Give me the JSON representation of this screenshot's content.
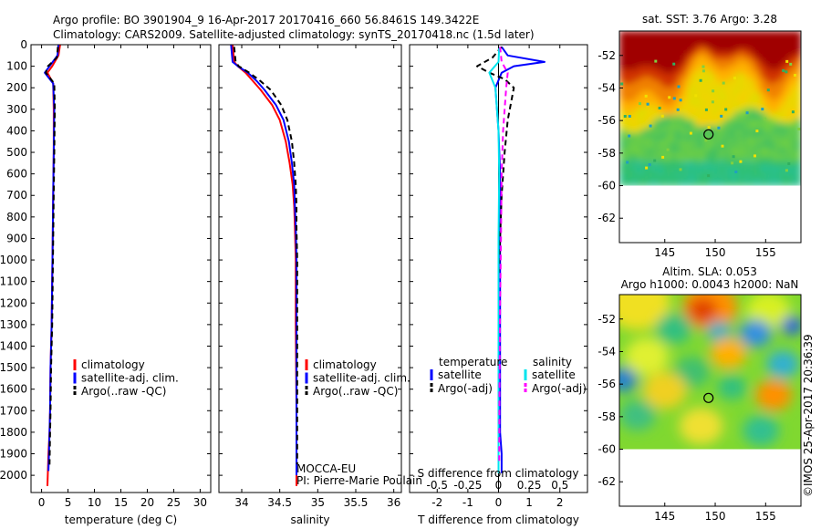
{
  "header": {
    "line1": "Argo profile: BO 3901904_9 16-Apr-2017 20170416_660 56.8461S 149.3422E",
    "line2": "Climatology: CARS2009. Satellite-adjusted climatology: synTS_20170418.nc (1.5d later)"
  },
  "colors": {
    "climatology": "#ff0000",
    "satellite": "#0000ff",
    "argo": "#000000",
    "sal_satellite": "#00e5ee",
    "sal_argo": "#ff00ff"
  },
  "chart_data": [
    {
      "type": "line",
      "id": "temperature",
      "xlabel": "temperature (deg C)",
      "xlim": [
        -2,
        32
      ],
      "ylim": [
        2080,
        0
      ],
      "xticks": [
        0,
        5,
        10,
        15,
        20,
        25,
        30
      ],
      "yticks": [
        0,
        100,
        200,
        300,
        400,
        500,
        600,
        700,
        800,
        900,
        1000,
        1100,
        1200,
        1300,
        1400,
        1500,
        1600,
        1700,
        1800,
        1900,
        2000
      ],
      "legend_position": "lower-center",
      "series": [
        {
          "name": "climatology",
          "color": "#ff0000",
          "style": "solid",
          "width": 2,
          "x": [
            3.5,
            3.2,
            2.0,
            1.1,
            2.2,
            2.3,
            2.3,
            2.2,
            2.1,
            2.0,
            1.9,
            1.7,
            1.6,
            1.5,
            1.3,
            1.1
          ],
          "y": [
            0,
            50,
            100,
            130,
            180,
            300,
            500,
            700,
            900,
            1100,
            1300,
            1500,
            1700,
            1800,
            1900,
            2050
          ]
        },
        {
          "name": "satellite-adj. clim.",
          "color": "#0000ff",
          "style": "solid",
          "width": 2,
          "x": [
            3.2,
            3.0,
            1.5,
            0.6,
            2.2,
            2.4,
            2.3,
            2.2,
            2.1,
            2.0,
            1.9,
            1.7,
            1.6,
            1.5,
            1.4,
            1.3
          ],
          "y": [
            0,
            50,
            100,
            130,
            180,
            300,
            500,
            700,
            900,
            1100,
            1300,
            1500,
            1700,
            1800,
            1900,
            1980
          ]
        },
        {
          "name": "Argo(..raw -QC)",
          "color": "#000000",
          "style": "dashed",
          "width": 2,
          "x": [
            3.1,
            2.9,
            1.2,
            0.8,
            2.4,
            2.5,
            2.4,
            2.3,
            2.2,
            2.1,
            2.0,
            1.8,
            1.7,
            1.6,
            1.5
          ],
          "y": [
            10,
            60,
            100,
            130,
            180,
            300,
            500,
            700,
            900,
            1100,
            1300,
            1500,
            1700,
            1800,
            1950
          ]
        }
      ]
    },
    {
      "type": "line",
      "id": "salinity",
      "xlabel": "salinity",
      "xlim": [
        33.7,
        36.1
      ],
      "ylim": [
        2080,
        0
      ],
      "xticks": [
        34,
        34.5,
        35,
        35.5,
        36
      ],
      "legend_position": "lower-center",
      "annotations": [
        "MOCCA-EU",
        "PI: Pierre-Marie Poulain"
      ],
      "series": [
        {
          "name": "climatology",
          "color": "#ff0000",
          "style": "solid",
          "width": 2,
          "x": [
            33.88,
            33.9,
            33.95,
            34.05,
            34.15,
            34.25,
            34.4,
            34.5,
            34.58,
            34.63,
            34.67,
            34.69,
            34.7,
            34.71,
            34.71,
            34.72,
            34.72
          ],
          "y": [
            0,
            80,
            100,
            130,
            170,
            210,
            280,
            350,
            450,
            550,
            650,
            750,
            850,
            1000,
            1300,
            1700,
            2050
          ]
        },
        {
          "name": "satellite-adj. clim.",
          "color": "#0000ff",
          "style": "solid",
          "width": 2,
          "x": [
            33.86,
            33.88,
            33.95,
            34.08,
            34.2,
            34.3,
            34.45,
            34.55,
            34.62,
            34.66,
            34.69,
            34.7,
            34.71,
            34.72,
            34.72,
            34.72,
            34.72
          ],
          "y": [
            0,
            80,
            100,
            130,
            170,
            210,
            280,
            350,
            450,
            550,
            650,
            750,
            850,
            1000,
            1300,
            1700,
            2000
          ]
        },
        {
          "name": "Argo(..raw -QC)",
          "color": "#000000",
          "style": "dashed",
          "width": 2,
          "x": [
            33.9,
            33.92,
            33.96,
            34.1,
            34.25,
            34.38,
            34.52,
            34.6,
            34.66,
            34.69,
            34.71,
            34.72,
            34.72,
            34.73,
            34.73,
            34.73
          ],
          "y": [
            10,
            80,
            100,
            130,
            170,
            210,
            280,
            350,
            450,
            550,
            650,
            750,
            850,
            1000,
            1300,
            1950
          ]
        }
      ]
    },
    {
      "type": "line",
      "id": "difference",
      "xlabel": "T difference from climatology",
      "xlabel2": "S difference from climatology",
      "xlim": [
        -2.9,
        2.9
      ],
      "ylim": [
        2080,
        0
      ],
      "xticks": [
        -2,
        -1,
        0,
        1,
        2
      ],
      "xticks_s": [
        "-0.5",
        "-0.25",
        "0",
        "0.25",
        "0.5"
      ],
      "legend_position": "lower-center",
      "legend_titles": [
        "temperature",
        "salinity"
      ],
      "series": [
        {
          "name": "satellite",
          "group": "temperature",
          "color": "#0000ff",
          "style": "solid",
          "width": 2,
          "x": [
            0.1,
            0.3,
            1.5,
            0.5,
            0.1,
            -0.1,
            0.0,
            0.05,
            0.05,
            0.05,
            0.05,
            0.05,
            0.05,
            0.05,
            0.1,
            0.1
          ],
          "y": [
            10,
            50,
            80,
            100,
            130,
            200,
            400,
            600,
            800,
            1000,
            1200,
            1400,
            1600,
            1800,
            1900,
            1990
          ]
        },
        {
          "name": "Argo(-adj)",
          "group": "temperature",
          "color": "#000000",
          "style": "dashed",
          "width": 2,
          "x": [
            0.1,
            -0.2,
            -0.7,
            -0.3,
            0.2,
            0.5,
            0.3,
            0.2,
            0.1,
            0.05,
            0.0,
            0.0,
            0.0,
            0.0,
            0.0
          ],
          "y": [
            10,
            60,
            100,
            130,
            160,
            200,
            350,
            500,
            700,
            900,
            1100,
            1400,
            1600,
            1800,
            1950
          ]
        },
        {
          "name": "satellite",
          "group": "salinity",
          "color": "#00e5ee",
          "style": "solid",
          "width": 2,
          "x": [
            0.02,
            0.0,
            -0.3,
            -0.1,
            -0.05,
            0.0,
            0.02,
            0.0,
            0.0,
            0.0,
            0.0
          ],
          "y": [
            10,
            80,
            130,
            200,
            300,
            400,
            600,
            900,
            1200,
            1600,
            1990
          ]
        },
        {
          "name": "Argo(-adj)",
          "group": "salinity",
          "color": "#ff00ff",
          "style": "dashed",
          "width": 2,
          "x": [
            0.05,
            0.1,
            0.3,
            0.25,
            0.2,
            0.15,
            0.1,
            0.08,
            0.05,
            0.03,
            0.02
          ],
          "y": [
            10,
            80,
            130,
            200,
            300,
            400,
            600,
            900,
            1200,
            1600,
            1950
          ]
        }
      ]
    },
    {
      "type": "heatmap",
      "id": "sst-map",
      "title": "sat. SST: 3.76 Argo: 3.28",
      "xticks": [
        145,
        150,
        155
      ],
      "yticks": [
        -52,
        -54,
        -56,
        -58,
        -60,
        -62
      ],
      "xlim": [
        140.5,
        158.5
      ],
      "ylim": [
        -63.5,
        -50.5
      ],
      "data_extent_lat": [
        -60,
        -50.5
      ],
      "marker": {
        "lon": 149.34,
        "lat": -56.85
      }
    },
    {
      "type": "heatmap",
      "id": "sla-map",
      "title": "Altim. SLA: 0.053",
      "subtitle": "Argo h1000: 0.0043 h2000: NaN",
      "xticks": [
        145,
        150,
        155
      ],
      "yticks": [
        -52,
        -54,
        -56,
        -58,
        -60,
        -62
      ],
      "xlim": [
        140.5,
        158.5
      ],
      "ylim": [
        -63.5,
        -50.5
      ],
      "data_extent_lat": [
        -60,
        -50.5
      ],
      "marker": {
        "lon": 149.34,
        "lat": -56.85
      }
    }
  ],
  "credit": "©IMOS 25-Apr-2017 20:36:39"
}
